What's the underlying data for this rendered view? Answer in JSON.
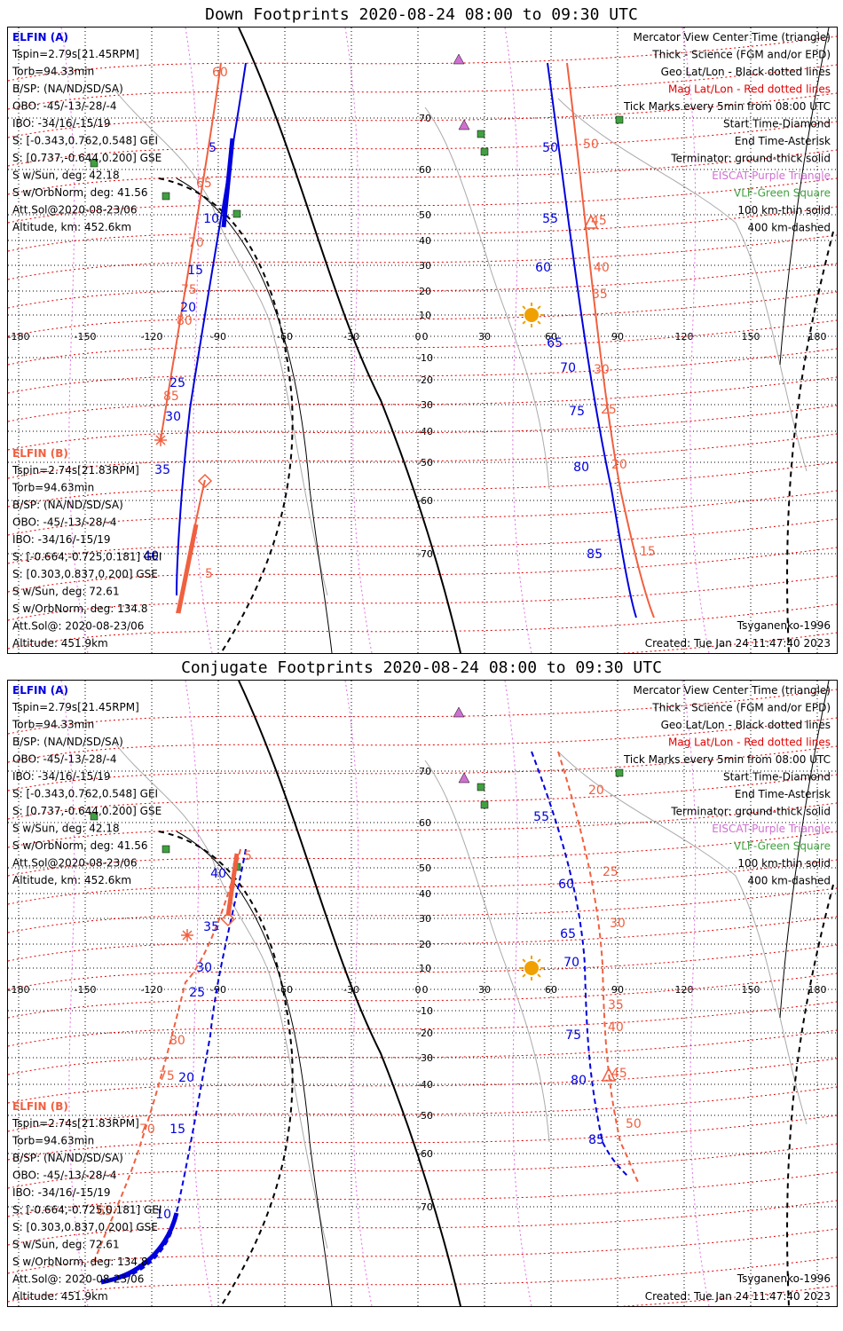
{
  "panels": [
    {
      "title": "Down Footprints 2020-08-24 08:00 to 09:30 UTC",
      "elfin_a": {
        "name": "ELFIN (A)",
        "lines": [
          "Tspin=2.79s[21.45RPM]",
          "Torb=94.33min",
          "B/SP: (NA/ND/SD/SA)",
          "OBO: -45/-13/-28/-4",
          "IBO: -34/16/-15/19",
          "S: [-0.343,0.762,0.548] GEI",
          "S: [0.737,-0.644,0.200] GSE",
          "S w/Sun, deg: 42.18",
          "S w/OrbNorm, deg: 41.56",
          "Att.Sol@2020-08-23/06",
          "Altitude, km: 452.6km"
        ]
      },
      "elfin_b": {
        "name": "ELFIN (B)",
        "lines": [
          "Tspin=2.74s[21.83RPM]",
          "Torb=94.63min",
          "B/SP: (NA/ND/SD/SA)",
          "OBO: -45/-13/-28/-4",
          "IBO: -34/16/-15/19",
          "S: [-0.664,-0.725,0.181] GEI",
          "S: [0.303,0.837,0.200] GSE",
          "S w/Sun, deg: 72.61",
          "S w/OrbNorm, deg: 134.8",
          "Att.Sol@: 2020-08-23/06",
          "Altitude: 451.9km"
        ]
      },
      "model": "Tsyganenko-1996",
      "created": "Created: Tue Jan 24 11:47:40 2023"
    },
    {
      "title": "Conjugate Footprints 2020-08-24 08:00 to 09:30 UTC",
      "elfin_a": {
        "name": "ELFIN (A)",
        "lines": [
          "Tspin=2.79s[21.45RPM]",
          "Torb=94.33min",
          "B/SP: (NA/ND/SD/SA)",
          "OBO: -45/-13/-28/-4",
          "IBO: -34/16/-15/19",
          "S: [-0.343,0.762,0.548] GEI",
          "S: [0.737,-0.644,0.200] GSE",
          "S w/Sun, deg: 42.18",
          "S w/OrbNorm, deg: 41.56",
          "Att.Sol@2020-08-23/06",
          "Altitude, km: 452.6km"
        ]
      },
      "elfin_b": {
        "name": "ELFIN (B)",
        "lines": [
          "Tspin=2.74s[21.83RPM]",
          "Torb=94.63min",
          "B/SP: (NA/ND/SD/SA)",
          "OBO: -45/-13/-28/-4",
          "IBO: -34/16/-15/19",
          "S: [-0.664,-0.725,0.181] GEI",
          "S: [0.303,0.837,0.200] GSE",
          "S w/Sun, deg: 72.61",
          "S w/OrbNorm, deg: 134.8",
          "Att.Sol@: 2020-08-23/06",
          "Altitude: 451.9km"
        ]
      },
      "model": "Tsyganenko-1996",
      "created": "Created: Tue Jan 24 11:47:40 2023"
    }
  ],
  "legend": [
    {
      "text": "Mercator View Center Time (triangle)",
      "color": "#000000"
    },
    {
      "text": "Thick - Science (FGM and/or EPD)",
      "color": "#000000"
    },
    {
      "text": "Geo Lat/Lon - Black dotted lines",
      "color": "#000000"
    },
    {
      "text": "Mag Lat/Lon - Red dotted lines",
      "color": "#e00000"
    },
    {
      "text": "Tick Marks every 5min from 08:00 UTC",
      "color": "#000000"
    },
    {
      "text": "Start Time-Diamond",
      "color": "#000000"
    },
    {
      "text": "End Time-Asterisk",
      "color": "#000000"
    },
    {
      "text": "Terminator: ground-thick solid",
      "color": "#000000"
    },
    {
      "text": "EISCAT-Purple Triangle",
      "color": "#d070d0"
    },
    {
      "text": "VLF-Green Square",
      "color": "#40a040"
    },
    {
      "text": "100 km-thin solid",
      "color": "#000000"
    },
    {
      "text": "400 km-dashed",
      "color": "#000000"
    }
  ],
  "lon_labels": [
    "-180",
    "-150",
    "-120",
    "-90",
    "-60",
    "-30",
    "0",
    "30",
    "60",
    "90",
    "120",
    "150",
    "180"
  ],
  "lat_labels": [
    "70",
    "60",
    "50",
    "40",
    "30",
    "20",
    "10",
    "0",
    "-10",
    "-20",
    "-30",
    "-40",
    "-50",
    "-60",
    "-70"
  ],
  "colors": {
    "elfin_a": "#0000dd",
    "elfin_b": "#f06040",
    "mag_grid": "#e00000",
    "geo_grid": "#000000",
    "eiscat": "#d070d0",
    "vlf": "#40a040",
    "sun": "#f0a000"
  },
  "panel1_a_ticks": [
    "5",
    "10",
    "15",
    "20",
    "25",
    "30",
    "35",
    "40",
    "50",
    "55",
    "60",
    "65",
    "70",
    "75",
    "80",
    "85"
  ],
  "panel1_b_ticks": [
    "60",
    "65",
    "70",
    "75",
    "80",
    "85",
    "5",
    "15",
    "20",
    "25",
    "30",
    "35",
    "40",
    "45",
    "50"
  ],
  "panel2_a_ticks": [
    "40",
    "35",
    "30",
    "25",
    "20",
    "15",
    "10",
    "55",
    "60",
    "65",
    "70",
    "75",
    "80",
    "85"
  ],
  "panel2_b_ticks": [
    "5",
    "80",
    "75",
    "70",
    "65",
    "20",
    "25",
    "30",
    "35",
    "40",
    "45",
    "50"
  ]
}
